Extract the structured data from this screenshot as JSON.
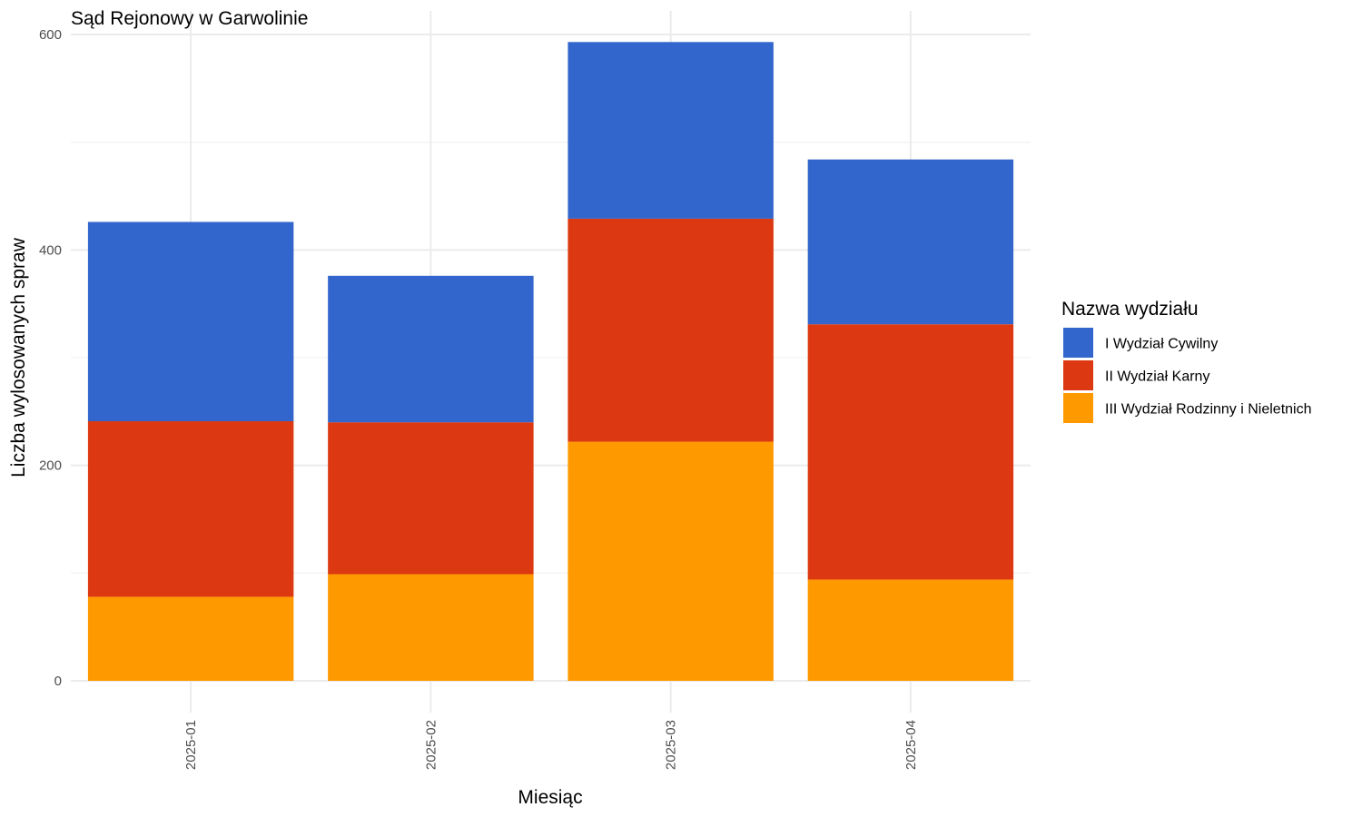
{
  "chart_data": {
    "type": "bar",
    "stacked": true,
    "title": "Sąd Rejonowy w Garwolinie",
    "xlabel": "Miesiąc",
    "ylabel": "Liczba wylosowanych spraw",
    "categories": [
      "2025-01",
      "2025-02",
      "2025-03",
      "2025-04"
    ],
    "series": [
      {
        "name": "III Wydział Rodzinny i Nieletnich",
        "color": "#ff9900",
        "values": [
          78,
          99,
          222,
          94
        ]
      },
      {
        "name": "II Wydział Karny",
        "color": "#dc3912",
        "values": [
          163,
          141,
          207,
          237
        ]
      },
      {
        "name": "I Wydział Cywilny",
        "color": "#3366cc",
        "values": [
          185,
          136,
          164,
          153
        ]
      }
    ],
    "ylim": [
      0,
      600
    ],
    "yticks": [
      0,
      200,
      400,
      600
    ],
    "grid": true,
    "legend": {
      "title": "Nazwa wydziału",
      "placement": "right",
      "items": [
        {
          "label": "I Wydział Cywilny",
          "color": "#3366cc"
        },
        {
          "label": "II Wydział Karny",
          "color": "#dc3912"
        },
        {
          "label": "III Wydział Rodzinny i Nieletnich",
          "color": "#ff9900"
        }
      ]
    }
  }
}
